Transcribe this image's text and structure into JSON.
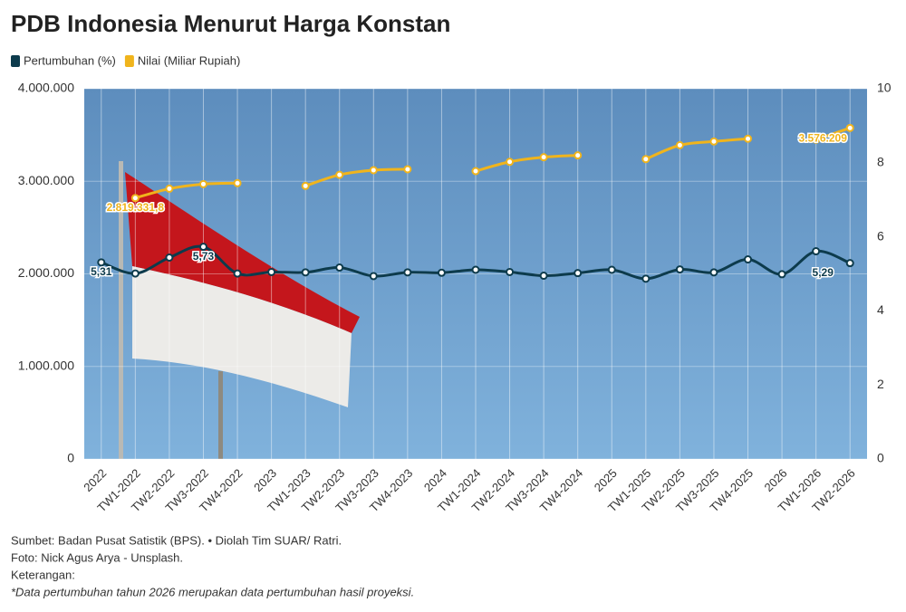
{
  "chart_data": {
    "type": "line",
    "title": "PDB Indonesia Menurut Harga Konstan",
    "categories": [
      "2022",
      "TW1-2022",
      "TW2-2022",
      "TW3-2022",
      "TW4-2022",
      "2023",
      "TW1-2023",
      "TW2-2023",
      "TW3-2023",
      "TW4-2023",
      "2024",
      "TW1-2024",
      "TW2-2024",
      "TW3-2024",
      "TW4-2024",
      "2025",
      "TW1-2025",
      "TW2-2025",
      "TW3-2025",
      "TW4-2025",
      "2026",
      "TW1-2026",
      "TW2-2026"
    ],
    "series": [
      {
        "name": "Pertumbuhan (%)",
        "color": "#0d3b4c",
        "axis": "y2",
        "values": [
          5.31,
          5.01,
          5.44,
          5.73,
          5.01,
          5.05,
          5.04,
          5.17,
          4.94,
          5.04,
          5.03,
          5.11,
          5.05,
          4.95,
          5.02,
          5.11,
          4.87,
          5.12,
          5.04,
          5.39,
          4.99,
          5.61,
          5.29
        ],
        "value_labels": [
          "5,31",
          null,
          null,
          "5,73",
          null,
          null,
          null,
          null,
          null,
          null,
          null,
          null,
          null,
          null,
          null,
          null,
          null,
          null,
          null,
          null,
          null,
          null,
          "5,29"
        ]
      },
      {
        "name": "Nilai (Miliar Rupiah)",
        "color": "#f0b41c",
        "values": [
          null,
          2819331.8,
          2920000,
          2970000,
          2980000,
          null,
          2950000,
          3070000,
          3120000,
          3130000,
          null,
          3110000,
          3210000,
          3260000,
          3280000,
          null,
          3240000,
          3390000,
          3430000,
          3460000,
          null,
          3450000,
          3576209
        ],
        "value_labels": [
          null,
          "2.819.331,8",
          null,
          null,
          null,
          null,
          null,
          null,
          null,
          null,
          null,
          null,
          null,
          null,
          null,
          null,
          null,
          null,
          null,
          null,
          null,
          null,
          "3.576.209"
        ]
      }
    ],
    "ylim": [
      0,
      4000000
    ],
    "yticks": [
      0,
      {
        "value": 1000000,
        "label": "1.000.000"
      },
      {
        "value": 2000000,
        "label": "2.000.000"
      },
      {
        "value": 3000000,
        "label": "3.000.000"
      },
      {
        "value": 4000000,
        "label": "4.000.000"
      }
    ],
    "y2lim": [
      0,
      10
    ],
    "y2ticks": [
      0,
      2,
      4,
      6,
      8,
      10
    ],
    "grid": true,
    "legend": "top-left",
    "notes": [
      "Sumbet: Badan Pusat Satistik (BPS). • Diolah Tim SUAR/ Ratri.",
      "Foto: Nick Agus Arya - Unsplash.",
      "Keterangan:",
      "*Data pertumbuhan tahun 2026 merupakan data pertumbuhan hasil proyeksi."
    ]
  }
}
